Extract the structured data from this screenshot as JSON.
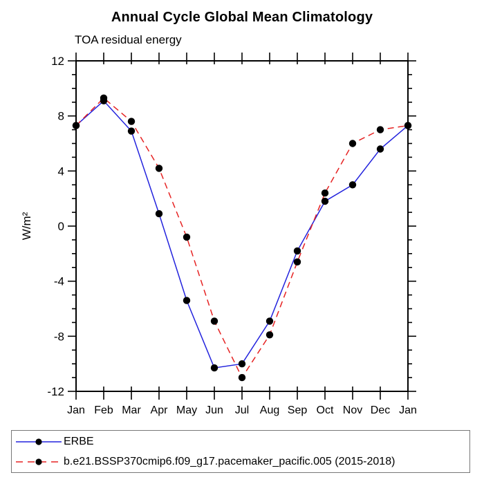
{
  "chart_data": {
    "type": "line",
    "title": "Annual Cycle Global Mean Climatology",
    "subtitle": "TOA residual energy",
    "ylabel": "W/m²",
    "xlabel": "",
    "categories": [
      "Jan",
      "Feb",
      "Mar",
      "Apr",
      "May",
      "Jun",
      "Jul",
      "Aug",
      "Sep",
      "Oct",
      "Nov",
      "Dec",
      "Jan"
    ],
    "series": [
      {
        "name": "ERBE",
        "color": "#2222dd",
        "style": "solid",
        "marker": "circle",
        "marker_color": "#000000",
        "values": [
          7.3,
          9.1,
          6.9,
          0.9,
          -5.4,
          -10.3,
          -10.0,
          -6.9,
          -1.8,
          1.8,
          3.0,
          5.6,
          7.3
        ]
      },
      {
        "name": "b.e21.BSSP370cmip6.f09_g17.pacemaker_pacific.005 (2015-2018)",
        "color": "#e62222",
        "style": "dashed",
        "marker": "circle",
        "marker_color": "#000000",
        "values": [
          7.3,
          9.3,
          7.6,
          4.2,
          -0.8,
          -6.9,
          -11.0,
          -7.9,
          -2.6,
          2.4,
          6.0,
          7.0,
          7.3
        ]
      }
    ],
    "ylim": [
      -12,
      12
    ],
    "ytick_major": 4,
    "ytick_minor": 1,
    "grid": "off",
    "legend_position": "bottom-left-box",
    "frame_color": "#000000"
  }
}
